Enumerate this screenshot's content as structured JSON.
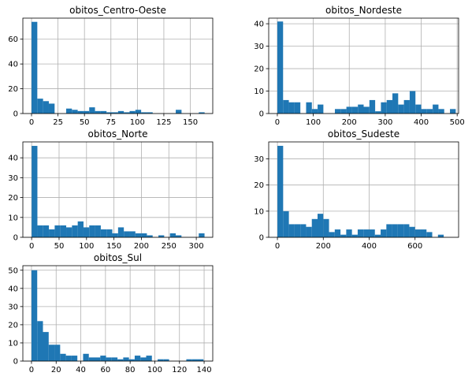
{
  "colors": {
    "bar": "#1f77b4",
    "grid": "#b0b0b0",
    "axis": "#000000"
  },
  "chart_data": [
    {
      "type": "bar",
      "title": "obitos_Centro-Oeste",
      "grid": true,
      "xlim": [
        -8.2,
        171.2
      ],
      "ylim": [
        0,
        77
      ],
      "xticks": [
        0,
        25,
        50,
        75,
        100,
        125,
        150
      ],
      "yticks": [
        0,
        20,
        40,
        60
      ],
      "bin_width": 5.45,
      "bin_start": 0,
      "values": [
        74,
        12,
        10,
        8,
        0,
        0,
        4,
        3,
        2,
        2,
        5,
        2,
        2,
        1,
        1,
        2,
        1,
        2,
        3,
        1,
        1,
        0,
        0,
        0,
        0,
        3,
        0,
        0,
        0,
        1
      ]
    },
    {
      "type": "bar",
      "title": "obitos_Nordeste",
      "grid": true,
      "xlim": [
        -24,
        504
      ],
      "ylim": [
        0,
        42.5
      ],
      "xticks": [
        0,
        100,
        200,
        300,
        400,
        500
      ],
      "yticks": [
        0,
        10,
        20,
        30,
        40
      ],
      "bin_width": 16,
      "bin_start": 0,
      "values": [
        41,
        6,
        5,
        5,
        0,
        5,
        2,
        4,
        0,
        0,
        2,
        2,
        3,
        3,
        4,
        3,
        6,
        1,
        5,
        6,
        9,
        4,
        6,
        10,
        4,
        2,
        2,
        4,
        2,
        0,
        2
      ]
    },
    {
      "type": "bar",
      "title": "obitos_Norte",
      "grid": true,
      "xlim": [
        -16,
        330
      ],
      "ylim": [
        0,
        48
      ],
      "xticks": [
        0,
        50,
        100,
        150,
        200,
        250,
        300
      ],
      "yticks": [
        0,
        10,
        20,
        30,
        40
      ],
      "bin_width": 10.5,
      "bin_start": 0,
      "values": [
        46,
        6,
        6,
        4,
        6,
        6,
        5,
        6,
        8,
        5,
        6,
        6,
        4,
        4,
        2,
        5,
        3,
        3,
        2,
        2,
        1,
        0,
        1,
        0,
        2,
        1,
        0,
        0,
        0,
        2
      ]
    },
    {
      "type": "bar",
      "title": "obitos_Sudeste",
      "grid": true,
      "xlim": [
        -38,
        790
      ],
      "ylim": [
        0,
        36.5
      ],
      "xticks": [
        0,
        200,
        400,
        600
      ],
      "yticks": [
        0,
        10,
        20,
        30
      ],
      "bin_width": 25,
      "bin_start": 0,
      "values": [
        35,
        10,
        5,
        5,
        5,
        4,
        7,
        9,
        7,
        2,
        3,
        1,
        3,
        1,
        3,
        3,
        3,
        1,
        3,
        5,
        5,
        5,
        5,
        4,
        3,
        3,
        2,
        0,
        1
      ]
    },
    {
      "type": "bar",
      "title": "obitos_Sul",
      "grid": true,
      "xlim": [
        -7,
        147
      ],
      "ylim": [
        0,
        52.5
      ],
      "xticks": [
        0,
        20,
        40,
        60,
        80,
        100,
        120,
        140
      ],
      "yticks": [
        0,
        10,
        20,
        30,
        40,
        50
      ],
      "bin_width": 4.65,
      "bin_start": 0,
      "values": [
        50,
        22,
        16,
        9,
        9,
        4,
        3,
        3,
        0,
        4,
        2,
        2,
        3,
        2,
        2,
        1,
        2,
        1,
        3,
        2,
        3,
        0,
        1,
        1,
        0,
        0,
        0,
        1,
        1,
        1
      ]
    }
  ]
}
